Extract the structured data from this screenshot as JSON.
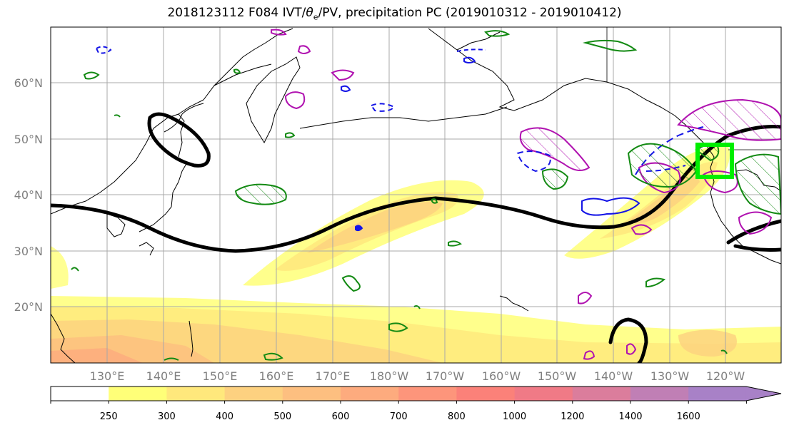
{
  "title": {
    "prefix": "2018123112 F084 IVT/",
    "theta": "θ",
    "theta_sub": "e",
    "suffix": "/PV, precipitation PC (2019010312 - 2019010412)"
  },
  "lat_labels": [
    "60°N",
    "50°N",
    "40°N",
    "30°N",
    "20°N"
  ],
  "lon_labels": [
    "130°E",
    "140°E",
    "150°E",
    "160°E",
    "170°E",
    "180°W",
    "170°W",
    "160°W",
    "150°W",
    "140°W",
    "130°W",
    "120°W"
  ],
  "colorbar": {
    "levels": [
      "250",
      "300",
      "400",
      "500",
      "600",
      "700",
      "800",
      "1000",
      "1200",
      "1400",
      "1600"
    ],
    "colors": [
      "#ffffff",
      "#ffff78",
      "#ffe87c",
      "#fdd180",
      "#fdbf80",
      "#fdab7e",
      "#fd957b",
      "#fb8179",
      "#f07a86",
      "#db7d9c",
      "#c07fb5",
      "#a881c7"
    ]
  }
}
